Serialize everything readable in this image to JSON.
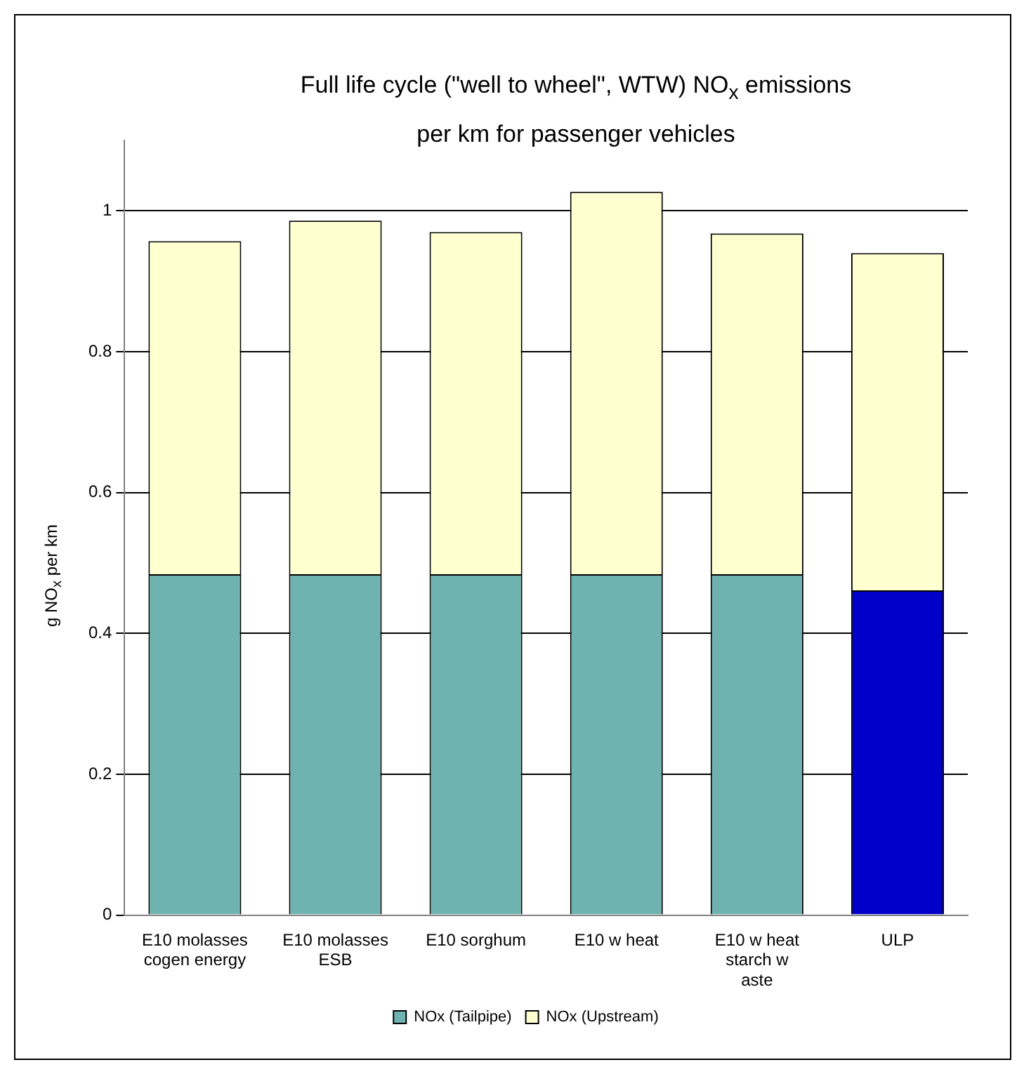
{
  "chart_data": {
    "type": "bar",
    "title": "Full life cycle (\"well to wheel\", WTW) NO$_{x}$ emissions per km for passenger vehicles",
    "ylabel": "g NO$_{x}$ per km",
    "categories": [
      "E10 molasses cogen energy",
      "E10 molasses ESB",
      "E10 sorghum",
      "E10 w heat",
      "E10 w heat starch w aste",
      "ULP"
    ],
    "stacked": true,
    "series": [
      {
        "name": "NOx (Tailpipe)",
        "color": "#6fb3b0",
        "colors": [
          "#6fb3b0",
          "#6fb3b0",
          "#6fb3b0",
          "#6fb3b0",
          "#6fb3b0",
          "#0000c8"
        ],
        "values": [
          0.484,
          0.484,
          0.484,
          0.484,
          0.484,
          0.461
        ]
      },
      {
        "name": "NOx (Upstream)",
        "color": "#ffffd0",
        "values": [
          0.473,
          0.502,
          0.486,
          0.543,
          0.484,
          0.479
        ]
      }
    ],
    "ylim": [
      0,
      1.1
    ],
    "yticks": [
      0,
      0.2,
      0.4,
      0.6,
      0.8,
      1
    ],
    "grid": "y",
    "legend": "bottom"
  }
}
